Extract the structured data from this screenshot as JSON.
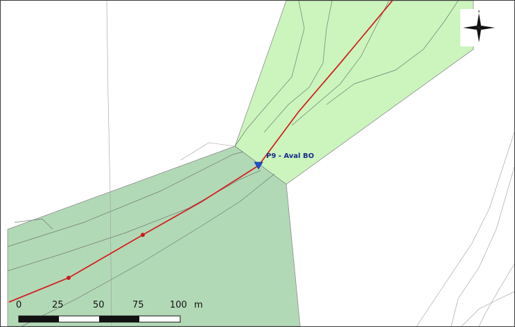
{
  "map": {
    "point": {
      "label": "P9 - Aval BO",
      "symbol": "blue-triangle",
      "color": "#1f4fd1"
    },
    "profile_line_color": "#d42020",
    "zone_colors": {
      "upstream": "#cbf5bd",
      "downstream": "#b2d9b6"
    },
    "scale_bar": {
      "labels": [
        "0",
        "25",
        "50",
        "75",
        "100"
      ],
      "unit": "m"
    },
    "north_arrow_icon": "compass-rose-icon"
  }
}
